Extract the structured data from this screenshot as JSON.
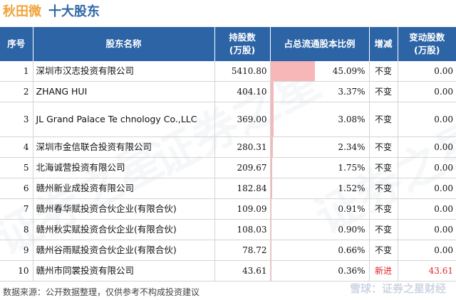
{
  "title": {
    "stock": "秋田微",
    "section": "十大股东"
  },
  "columns": [
    "序号",
    "股东名称",
    "持股数\n(万股)",
    "占总流通股本比例",
    "增减",
    "变动股数\n(万股)"
  ],
  "rows": [
    {
      "idx": "1",
      "name": "深圳市汉志投资有限公司",
      "shares": "5410.80",
      "ratio": "45.09%",
      "ratio_value": 45.09,
      "change": "不变",
      "amount": "0.00"
    },
    {
      "idx": "2",
      "name": "ZHANG HUI",
      "shares": "404.10",
      "ratio": "3.37%",
      "ratio_value": 3.37,
      "change": "不变",
      "amount": "0.00"
    },
    {
      "idx": "3",
      "name": "JL Grand Palace Te chnology Co.,LLC",
      "shares": "369.00",
      "ratio": "3.08%",
      "ratio_value": 3.08,
      "change": "不变",
      "amount": "0.00"
    },
    {
      "idx": "4",
      "name": "深圳市金信联合投资有限公司",
      "shares": "280.31",
      "ratio": "2.34%",
      "ratio_value": 2.34,
      "change": "不变",
      "amount": "0.00"
    },
    {
      "idx": "5",
      "name": "北海诚营投资有限公司",
      "shares": "209.67",
      "ratio": "1.75%",
      "ratio_value": 1.75,
      "change": "不变",
      "amount": "0.00"
    },
    {
      "idx": "6",
      "name": "赣州新业成投资有限公司",
      "shares": "182.84",
      "ratio": "1.52%",
      "ratio_value": 1.52,
      "change": "不变",
      "amount": "0.00"
    },
    {
      "idx": "7",
      "name": "赣州春华赋投资合伙企业(有限合伙)",
      "shares": "109.09",
      "ratio": "0.91%",
      "ratio_value": 0.91,
      "change": "不变",
      "amount": "0.00"
    },
    {
      "idx": "8",
      "name": "赣州秋实赋投资合伙企业(有限合伙)",
      "shares": "108.03",
      "ratio": "0.90%",
      "ratio_value": 0.9,
      "change": "不变",
      "amount": "0.00"
    },
    {
      "idx": "9",
      "name": "赣州谷雨赋投资合伙企业(有限合伙)",
      "shares": "78.72",
      "ratio": "0.66%",
      "ratio_value": 0.66,
      "change": "不变",
      "amount": "0.00"
    },
    {
      "idx": "10",
      "name": "赣州市同裳投资有限公司",
      "shares": "43.61",
      "ratio": "0.36%",
      "ratio_value": 0.36,
      "change": "新进",
      "amount": "43.61"
    }
  ],
  "footer": "数据来源：公开数据整理，仅供参考不构成投资建议",
  "brand": "雪球：证券之星财经",
  "watermark": "证券之星",
  "colors": {
    "header_bg": "#2d64a6",
    "bar": "#f7b7b9",
    "new": "#e0242a",
    "stock_title": "#f0a33a",
    "section_title": "#2f67a8"
  }
}
